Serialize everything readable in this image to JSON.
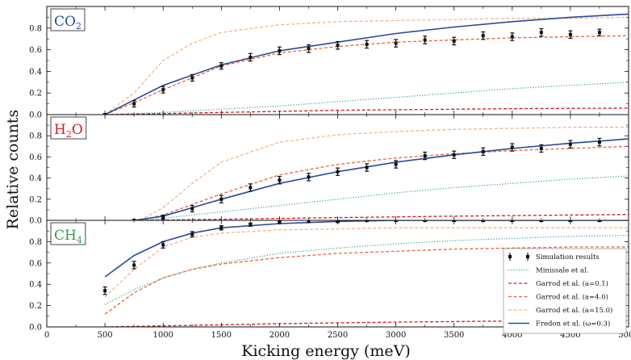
{
  "chart_data": {
    "type": "line",
    "xlabel": "Kicking energy (meV)",
    "ylabel": "Relative counts",
    "xlim": [
      0,
      5000
    ],
    "ylim": [
      0,
      1.0
    ],
    "x_ticks": [
      "0",
      "500",
      "1000",
      "1500",
      "2000",
      "2500",
      "3000",
      "3500",
      "4000",
      "4500",
      "5000"
    ],
    "y_ticks": [
      "0.0",
      "0.2",
      "0.4",
      "0.6",
      "0.8"
    ],
    "grid": false,
    "legend_position": "bottom-right of bottom panel",
    "colors": {
      "simulation": "#111111",
      "minissale": "#3aa38f",
      "garrod_0_1": "#d7191c",
      "garrod_4_0": "#e8663b",
      "garrod_15_0": "#f6b38a",
      "fredon": "#2b4a9b",
      "co2_label": "#2b4a9b",
      "h2o_label": "#d7191c",
      "ch4_label": "#2ea043"
    },
    "legend": [
      {
        "key": "sim",
        "label": "Simulation results"
      },
      {
        "key": "min",
        "label": "Minissale et al."
      },
      {
        "key": "g01",
        "label": "Garrod et al. (a=0.1)"
      },
      {
        "key": "g40",
        "label": "Garrod et al. (a=4.0)"
      },
      {
        "key": "g150",
        "label": "Garrod et al. (a=15.0)"
      },
      {
        "key": "fre",
        "label": "Fredon et al. (ω=0.3)"
      }
    ],
    "panels": [
      {
        "label_main": "CO",
        "label_sub": "2",
        "color": "#2b4a9b",
        "simulation": {
          "x": [
            500,
            750,
            1000,
            1250,
            1500,
            1750,
            2000,
            2250,
            2500,
            2750,
            3000,
            3250,
            3500,
            3750,
            4000,
            4250,
            4500,
            4750
          ],
          "y": [
            0.0,
            0.1,
            0.23,
            0.34,
            0.45,
            0.53,
            0.59,
            0.61,
            0.64,
            0.65,
            0.66,
            0.69,
            0.68,
            0.73,
            0.72,
            0.76,
            0.74,
            0.76
          ],
          "err": [
            0.01,
            0.03,
            0.03,
            0.03,
            0.03,
            0.035,
            0.035,
            0.035,
            0.035,
            0.035,
            0.035,
            0.035,
            0.035,
            0.035,
            0.035,
            0.035,
            0.035,
            0.03
          ]
        },
        "series": [
          {
            "key": "fre",
            "x": [
              500,
              1000,
              1500,
              2000,
              2500,
              3000,
              3500,
              4000,
              4500,
              5000
            ],
            "y": [
              0.0,
              0.27,
              0.46,
              0.59,
              0.67,
              0.75,
              0.81,
              0.86,
              0.9,
              0.93
            ]
          },
          {
            "key": "g40",
            "x": [
              500,
              750,
              1000,
              1250,
              1500,
              2000,
              2500,
              3000,
              3500,
              4000,
              4500,
              5000
            ],
            "y": [
              0.0,
              0.11,
              0.23,
              0.34,
              0.45,
              0.57,
              0.63,
              0.67,
              0.69,
              0.71,
              0.72,
              0.73
            ]
          },
          {
            "key": "g150",
            "x": [
              500,
              750,
              1000,
              1250,
              1500,
              2000,
              2500,
              3000,
              3500,
              4000,
              4500,
              5000
            ],
            "y": [
              0.0,
              0.2,
              0.5,
              0.66,
              0.76,
              0.83,
              0.86,
              0.87,
              0.88,
              0.89,
              0.89,
              0.9
            ]
          },
          {
            "key": "min",
            "x": [
              500,
              1000,
              1500,
              2000,
              2500,
              3000,
              3500,
              4000,
              4500,
              5000
            ],
            "y": [
              0.0,
              0.02,
              0.05,
              0.08,
              0.12,
              0.16,
              0.2,
              0.24,
              0.27,
              0.3
            ]
          },
          {
            "key": "g01",
            "x": [
              500,
              1000,
              1500,
              2000,
              2500,
              3000,
              3500,
              4000,
              4500,
              5000
            ],
            "y": [
              0.0,
              0.01,
              0.02,
              0.03,
              0.04,
              0.045,
              0.05,
              0.055,
              0.058,
              0.06
            ]
          }
        ]
      },
      {
        "label_main": "H",
        "label_sub": "2",
        "label_tail": "O",
        "color": "#d7191c",
        "simulation": {
          "x": [
            750,
            1000,
            1250,
            1500,
            1750,
            2000,
            2250,
            2500,
            2750,
            3000,
            3250,
            3500,
            3750,
            4000,
            4250,
            4500,
            4750
          ],
          "y": [
            0.0,
            0.03,
            0.11,
            0.2,
            0.31,
            0.38,
            0.41,
            0.46,
            0.5,
            0.53,
            0.61,
            0.62,
            0.65,
            0.69,
            0.68,
            0.72,
            0.74
          ],
          "err": [
            0.005,
            0.02,
            0.03,
            0.035,
            0.035,
            0.035,
            0.035,
            0.035,
            0.035,
            0.035,
            0.035,
            0.035,
            0.035,
            0.035,
            0.035,
            0.035,
            0.035
          ]
        },
        "series": [
          {
            "key": "fre",
            "x": [
              750,
              1000,
              1500,
              2000,
              2500,
              3000,
              3500,
              4000,
              4500,
              5000
            ],
            "y": [
              0.0,
              0.04,
              0.2,
              0.35,
              0.46,
              0.55,
              0.62,
              0.68,
              0.73,
              0.77
            ]
          },
          {
            "key": "g40",
            "x": [
              800,
              1000,
              1250,
              1500,
              2000,
              2500,
              3000,
              3500,
              4000,
              4500,
              5000
            ],
            "y": [
              0.0,
              0.05,
              0.15,
              0.25,
              0.43,
              0.53,
              0.59,
              0.63,
              0.66,
              0.68,
              0.7
            ]
          },
          {
            "key": "g150",
            "x": [
              800,
              1000,
              1250,
              1500,
              2000,
              2500,
              3000,
              3500,
              4000,
              4500,
              5000
            ],
            "y": [
              0.0,
              0.12,
              0.35,
              0.55,
              0.74,
              0.81,
              0.84,
              0.86,
              0.87,
              0.88,
              0.88
            ]
          },
          {
            "key": "min",
            "x": [
              800,
              1000,
              1500,
              2000,
              2500,
              3000,
              3500,
              4000,
              4500,
              5000
            ],
            "y": [
              0.0,
              0.02,
              0.08,
              0.14,
              0.2,
              0.26,
              0.31,
              0.35,
              0.39,
              0.42
            ]
          },
          {
            "key": "g01",
            "x": [
              800,
              1000,
              1500,
              2000,
              2500,
              3000,
              3500,
              4000,
              4500,
              5000
            ],
            "y": [
              0.0,
              0.003,
              0.01,
              0.018,
              0.026,
              0.033,
              0.04,
              0.045,
              0.05,
              0.055
            ]
          }
        ]
      },
      {
        "label_main": "CH",
        "label_sub": "4",
        "color": "#2ea043",
        "simulation": {
          "x": [
            500,
            750,
            1000,
            1250,
            1500,
            1750,
            2000,
            2250,
            2500,
            2750,
            3000,
            3250,
            3500,
            3750,
            4000,
            4250,
            4500,
            4750
          ],
          "y": [
            0.34,
            0.58,
            0.77,
            0.87,
            0.93,
            0.96,
            0.98,
            0.99,
            0.99,
            1.0,
            1.0,
            1.0,
            1.0,
            1.0,
            1.0,
            1.0,
            1.0,
            1.0
          ],
          "err": [
            0.035,
            0.035,
            0.03,
            0.025,
            0.02,
            0.015,
            0.01,
            0.01,
            0.01,
            0.01,
            0.01,
            0.01,
            0.01,
            0.01,
            0.01,
            0.01,
            0.01,
            0.01
          ]
        },
        "series": [
          {
            "key": "fre",
            "x": [
              500,
              750,
              1000,
              1250,
              1500,
              2000,
              2500,
              3000,
              3500,
              4000,
              4500,
              5000
            ],
            "y": [
              0.47,
              0.67,
              0.8,
              0.88,
              0.93,
              0.97,
              0.99,
              1.0,
              1.0,
              1.0,
              1.0,
              1.0
            ]
          },
          {
            "key": "g150",
            "x": [
              500,
              750,
              1000,
              1250,
              1500,
              2000,
              2500,
              3000,
              3500,
              4000,
              4500,
              5000
            ],
            "y": [
              0.28,
              0.54,
              0.75,
              0.84,
              0.88,
              0.91,
              0.92,
              0.93,
              0.93,
              0.93,
              0.93,
              0.93
            ]
          },
          {
            "key": "min",
            "x": [
              500,
              750,
              1000,
              1250,
              1500,
              2000,
              2500,
              3000,
              3500,
              4000,
              4500,
              5000
            ],
            "y": [
              0.21,
              0.35,
              0.46,
              0.54,
              0.6,
              0.69,
              0.74,
              0.78,
              0.81,
              0.83,
              0.85,
              0.86
            ]
          },
          {
            "key": "g40",
            "x": [
              500,
              750,
              1000,
              1250,
              1500,
              2000,
              2500,
              3000,
              3500,
              4000,
              4500,
              5000
            ],
            "y": [
              0.12,
              0.32,
              0.46,
              0.54,
              0.59,
              0.65,
              0.69,
              0.71,
              0.73,
              0.74,
              0.75,
              0.75
            ]
          },
          {
            "key": "g01",
            "x": [
              500,
              1000,
              1500,
              2000,
              2500,
              3000,
              3500,
              4000,
              4500,
              5000
            ],
            "y": [
              0.0,
              0.01,
              0.02,
              0.03,
              0.038,
              0.045,
              0.05,
              0.055,
              0.058,
              0.06
            ]
          }
        ]
      }
    ]
  }
}
